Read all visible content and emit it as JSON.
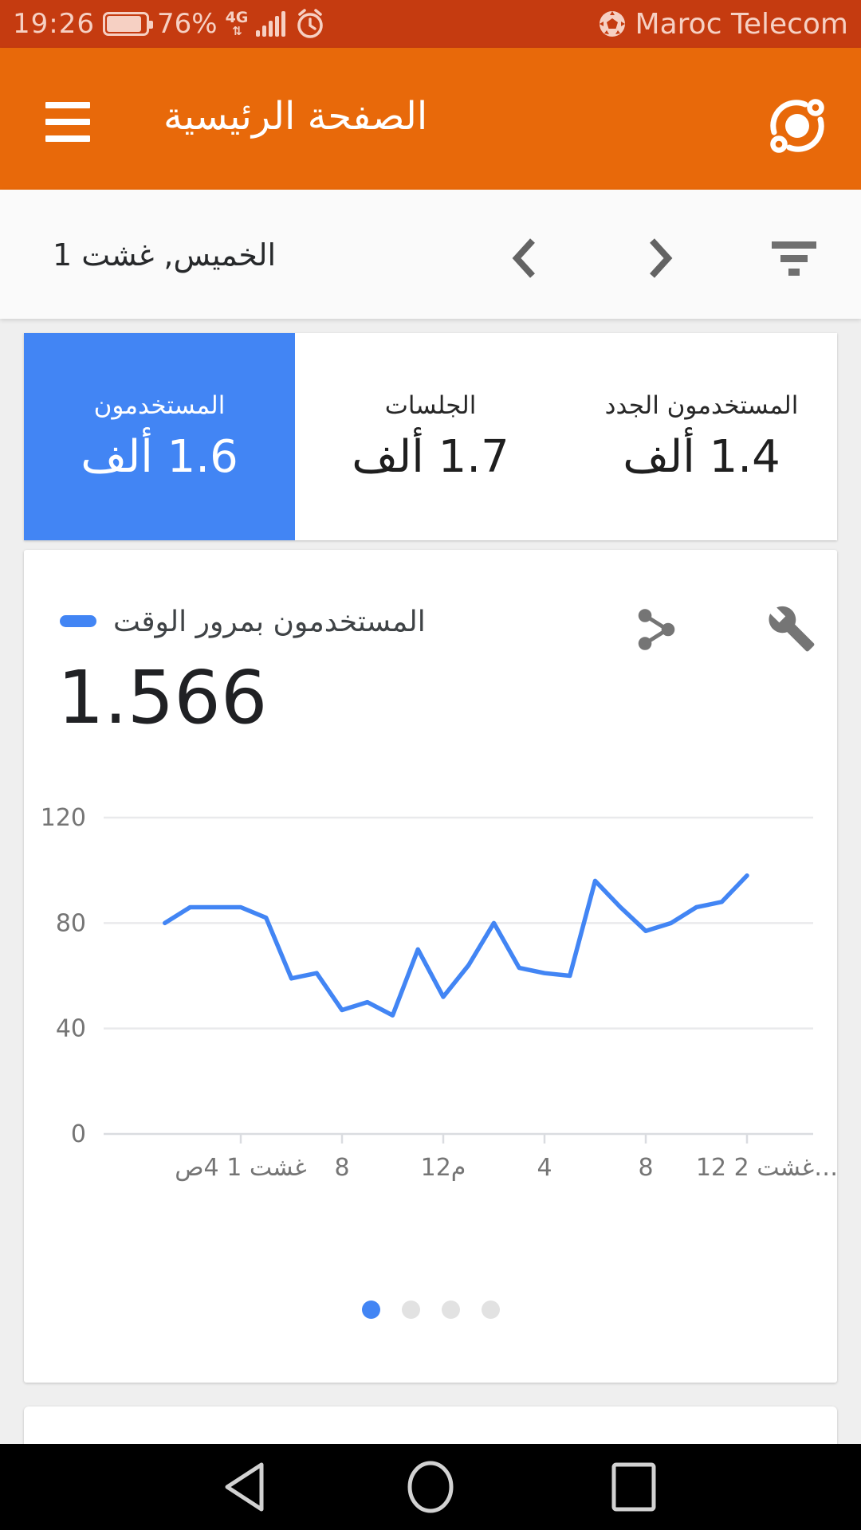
{
  "status_bar": {
    "time": "19:26",
    "battery_percent": "76%",
    "network_type": "4G",
    "carrier": "Maroc Telecom"
  },
  "app_bar": {
    "title": "الصفحة الرئيسية"
  },
  "date_bar": {
    "date_label": "الخميس, غشت 1"
  },
  "metric_tabs": [
    {
      "label": "المستخدمون",
      "value": "1.6 ألف",
      "selected": true
    },
    {
      "label": "الجلسات",
      "value": "1.7 ألف",
      "selected": false
    },
    {
      "label": "المستخدمون الجدد",
      "value": "1.4 ألف",
      "selected": false
    }
  ],
  "chart_card": {
    "title": "المستخدمون بمرور الوقت",
    "total_value": "1.566",
    "pagination": {
      "total": 4,
      "active_index": 0
    }
  },
  "chart_data": {
    "type": "line",
    "title": "المستخدمون بمرور الوقت",
    "total_label": "1.566",
    "ylim": [
      0,
      120
    ],
    "yticks": [
      0,
      40,
      80,
      120
    ],
    "grid": "horizontal",
    "x_tick_hours": [
      4,
      8,
      12,
      16,
      20,
      24
    ],
    "x_tick_labels": [
      "غشت 1 4ص",
      "8",
      "12م",
      "4",
      "8",
      "غشت 2 12…"
    ],
    "series": [
      {
        "name": "المستخدمون",
        "color": "#4285f4",
        "x_start_hour": 1,
        "x_step_hours": 1,
        "values": [
          80,
          86,
          86,
          86,
          82,
          59,
          61,
          47,
          50,
          45,
          70,
          52,
          64,
          80,
          63,
          61,
          60,
          96,
          86,
          77,
          80,
          86,
          88,
          98
        ]
      }
    ],
    "legend_position": "left-of-title"
  },
  "icons": {
    "battery-icon": "battery ~82% filled",
    "signal-bars-icon": "5 ascending bars",
    "alarm-clock-icon": "alarm clock outline",
    "soccer-ball-icon": "football glyph before carrier name",
    "menu-icon": "hamburger 3 bars",
    "intelligence-icon": "analytics insights orbit icon",
    "chevron-left-icon": "previous date",
    "chevron-right-icon": "next date",
    "filter-icon": "3 shrinking bars",
    "share-icon": "share network, RTL mirrored",
    "wrench-icon": "build/settings wrench",
    "nav-back-icon": "hollow triangle pointing left",
    "nav-home-icon": "hollow circle",
    "nav-recents-icon": "hollow square"
  },
  "colors": {
    "status_bar_bg": "#c53b10",
    "status_bar_fg": "#f6d0c3",
    "app_bar_bg": "#e8690a",
    "accent_blue": "#4285f4",
    "page_bg": "#efefef",
    "card_bg": "#ffffff",
    "icon_gray": "#757575",
    "gridline": "#e9eaec",
    "axis_line": "#dadce0",
    "nav_bar_bg": "#000000",
    "nav_icon": "#d2d2d2"
  }
}
